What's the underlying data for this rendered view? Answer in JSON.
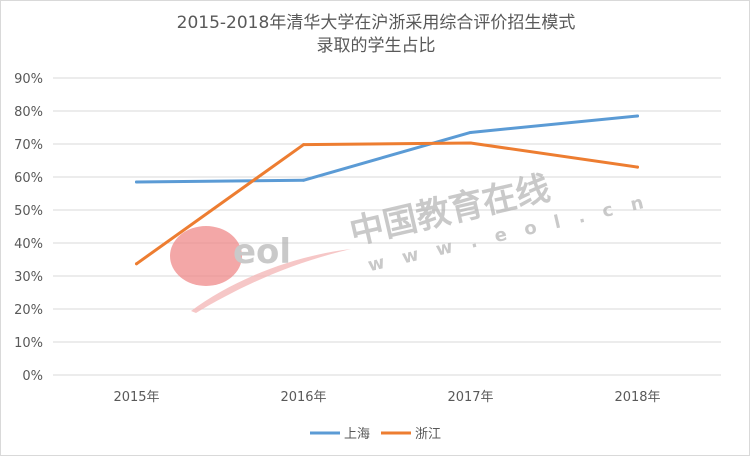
{
  "chart_data": {
    "type": "line",
    "title_line1": "2015-2018年清华大学在沪浙采用综合评价招生模式",
    "title_line2": "录取的学生占比",
    "categories": [
      "2015年",
      "2016年",
      "2017年",
      "2018年"
    ],
    "ylim": [
      0,
      90
    ],
    "y_tick_labels": [
      "0%",
      "10%",
      "20%",
      "30%",
      "40%",
      "50%",
      "60%",
      "70%",
      "80%",
      "90%"
    ],
    "grid": true,
    "legend_position": "bottom",
    "series": [
      {
        "name": "上海",
        "color": "#5b9bd5",
        "values": [
          58.5,
          59.0,
          73.5,
          78.5
        ]
      },
      {
        "name": "浙江",
        "color": "#ed7d31",
        "values": [
          33.7,
          69.8,
          70.3,
          63.0
        ]
      }
    ]
  },
  "watermark": {
    "brand_text": "中国教育在线",
    "url_text": "w w w . e o l . c n",
    "logo_text": "eol"
  }
}
